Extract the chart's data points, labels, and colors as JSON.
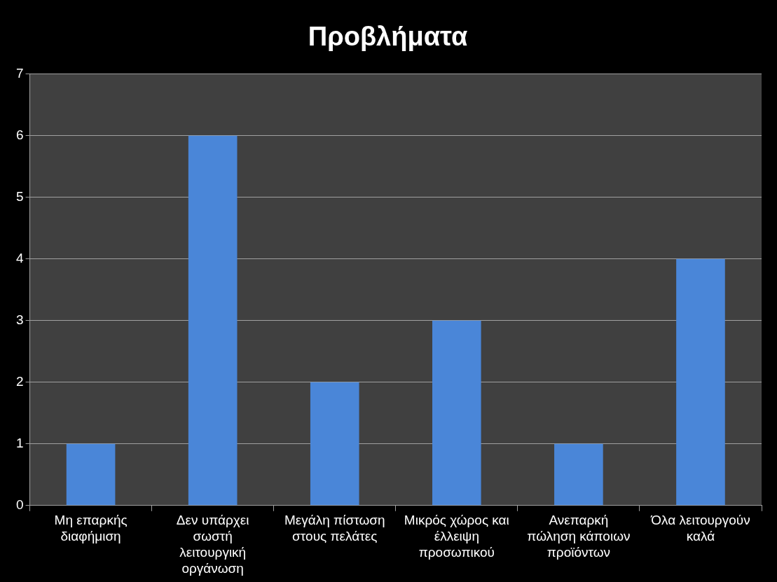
{
  "chart_data": {
    "type": "bar",
    "title": "Προβλήματα",
    "categories": [
      "Μη επαρκής διαφήμιση",
      "Δεν υπάρχει σωστή λειτουργική οργάνωση",
      "Μεγάλη πίστωση στους πελάτες",
      "Μικρός χώρος και έλλειψη προσωπικού",
      "Ανεπαρκή πώληση κάποιων προϊόντων",
      "Όλα λειτουργούν καλά"
    ],
    "values": [
      1,
      6,
      2,
      3,
      1,
      4
    ],
    "color": "#4a86d8",
    "ylim": [
      0,
      7
    ],
    "yticks": [
      0,
      1,
      2,
      3,
      4,
      5,
      6,
      7
    ],
    "grid": "y"
  }
}
